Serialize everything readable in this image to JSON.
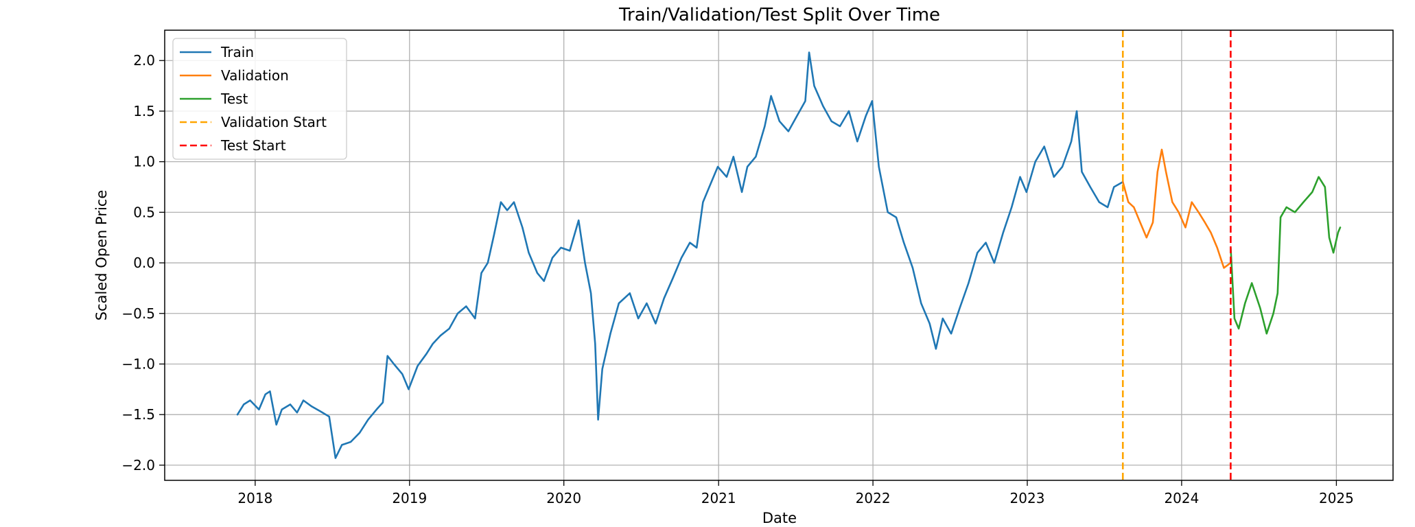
{
  "chart_data": {
    "type": "line",
    "title": "Train/Validation/Test Split Over Time",
    "xlabel": "Date",
    "ylabel": "Scaled Open Price",
    "xlim": [
      "2017-06-01",
      "2025-05-15"
    ],
    "ylim": [
      -2.15,
      2.3
    ],
    "grid": true,
    "legend_position": "top-left",
    "x_ticks": [
      "2018",
      "2019",
      "2020",
      "2021",
      "2022",
      "2023",
      "2024",
      "2025"
    ],
    "y_ticks": [
      "2.0",
      "1.5",
      "1.0",
      "0.5",
      "0.0",
      "−0.5",
      "−1.0",
      "−1.5",
      "−2.0"
    ],
    "x_tick_dates": [
      "2018-01-01",
      "2019-01-01",
      "2020-01-01",
      "2021-01-01",
      "2022-01-01",
      "2023-01-01",
      "2024-01-01",
      "2025-01-01"
    ],
    "y_tick_values": [
      2.0,
      1.5,
      1.0,
      0.5,
      0.0,
      -0.5,
      -1.0,
      -1.5,
      -2.0
    ],
    "series": [
      {
        "name": "Train",
        "color": "#1f77b4",
        "points": [
          [
            "2017-11-20",
            -1.5
          ],
          [
            "2017-12-05",
            -1.4
          ],
          [
            "2017-12-20",
            -1.36
          ],
          [
            "2018-01-10",
            -1.45
          ],
          [
            "2018-01-25",
            -1.3
          ],
          [
            "2018-02-05",
            -1.27
          ],
          [
            "2018-02-20",
            -1.6
          ],
          [
            "2018-03-05",
            -1.45
          ],
          [
            "2018-03-25",
            -1.4
          ],
          [
            "2018-04-10",
            -1.48
          ],
          [
            "2018-04-25",
            -1.36
          ],
          [
            "2018-05-15",
            -1.42
          ],
          [
            "2018-06-05",
            -1.47
          ],
          [
            "2018-06-25",
            -1.52
          ],
          [
            "2018-07-10",
            -1.93
          ],
          [
            "2018-07-25",
            -1.8
          ],
          [
            "2018-08-15",
            -1.77
          ],
          [
            "2018-09-05",
            -1.68
          ],
          [
            "2018-09-25",
            -1.55
          ],
          [
            "2018-10-15",
            -1.45
          ],
          [
            "2018-10-30",
            -1.38
          ],
          [
            "2018-11-10",
            -0.92
          ],
          [
            "2018-11-25",
            -1.0
          ],
          [
            "2018-12-15",
            -1.1
          ],
          [
            "2018-12-30",
            -1.25
          ],
          [
            "2019-01-20",
            -1.02
          ],
          [
            "2019-02-10",
            -0.9
          ],
          [
            "2019-02-25",
            -0.8
          ],
          [
            "2019-03-15",
            -0.72
          ],
          [
            "2019-04-05",
            -0.65
          ],
          [
            "2019-04-25",
            -0.5
          ],
          [
            "2019-05-15",
            -0.43
          ],
          [
            "2019-06-05",
            -0.55
          ],
          [
            "2019-06-20",
            -0.1
          ],
          [
            "2019-07-05",
            0.0
          ],
          [
            "2019-07-20",
            0.28
          ],
          [
            "2019-08-05",
            0.6
          ],
          [
            "2019-08-20",
            0.52
          ],
          [
            "2019-09-05",
            0.6
          ],
          [
            "2019-09-25",
            0.35
          ],
          [
            "2019-10-10",
            0.1
          ],
          [
            "2019-10-30",
            -0.1
          ],
          [
            "2019-11-15",
            -0.18
          ],
          [
            "2019-12-05",
            0.05
          ],
          [
            "2019-12-25",
            0.15
          ],
          [
            "2020-01-15",
            0.12
          ],
          [
            "2020-02-05",
            0.42
          ],
          [
            "2020-02-20",
            0.0
          ],
          [
            "2020-03-05",
            -0.3
          ],
          [
            "2020-03-15",
            -0.8
          ],
          [
            "2020-03-22",
            -1.55
          ],
          [
            "2020-04-01",
            -1.05
          ],
          [
            "2020-04-20",
            -0.7
          ],
          [
            "2020-05-10",
            -0.4
          ],
          [
            "2020-06-05",
            -0.3
          ],
          [
            "2020-06-25",
            -0.55
          ],
          [
            "2020-07-15",
            -0.4
          ],
          [
            "2020-08-05",
            -0.6
          ],
          [
            "2020-08-25",
            -0.35
          ],
          [
            "2020-09-15",
            -0.15
          ],
          [
            "2020-10-05",
            0.05
          ],
          [
            "2020-10-25",
            0.2
          ],
          [
            "2020-11-10",
            0.15
          ],
          [
            "2020-11-25",
            0.6
          ],
          [
            "2020-12-10",
            0.75
          ],
          [
            "2020-12-30",
            0.95
          ],
          [
            "2021-01-20",
            0.85
          ],
          [
            "2021-02-05",
            1.05
          ],
          [
            "2021-02-25",
            0.7
          ],
          [
            "2021-03-10",
            0.95
          ],
          [
            "2021-03-30",
            1.05
          ],
          [
            "2021-04-20",
            1.35
          ],
          [
            "2021-05-05",
            1.65
          ],
          [
            "2021-05-25",
            1.4
          ],
          [
            "2021-06-15",
            1.3
          ],
          [
            "2021-07-05",
            1.45
          ],
          [
            "2021-07-25",
            1.6
          ],
          [
            "2021-08-03",
            2.08
          ],
          [
            "2021-08-15",
            1.75
          ],
          [
            "2021-09-05",
            1.55
          ],
          [
            "2021-09-25",
            1.4
          ],
          [
            "2021-10-15",
            1.35
          ],
          [
            "2021-11-05",
            1.5
          ],
          [
            "2021-11-25",
            1.2
          ],
          [
            "2021-12-15",
            1.45
          ],
          [
            "2021-12-30",
            1.6
          ],
          [
            "2022-01-15",
            0.95
          ],
          [
            "2022-02-05",
            0.5
          ],
          [
            "2022-02-25",
            0.45
          ],
          [
            "2022-03-15",
            0.2
          ],
          [
            "2022-04-05",
            -0.05
          ],
          [
            "2022-04-25",
            -0.4
          ],
          [
            "2022-05-15",
            -0.6
          ],
          [
            "2022-05-30",
            -0.85
          ],
          [
            "2022-06-15",
            -0.55
          ],
          [
            "2022-07-05",
            -0.7
          ],
          [
            "2022-07-25",
            -0.45
          ],
          [
            "2022-08-15",
            -0.2
          ],
          [
            "2022-09-05",
            0.1
          ],
          [
            "2022-09-25",
            0.2
          ],
          [
            "2022-10-15",
            0.0
          ],
          [
            "2022-11-05",
            0.3
          ],
          [
            "2022-11-25",
            0.55
          ],
          [
            "2022-12-15",
            0.85
          ],
          [
            "2022-12-30",
            0.7
          ],
          [
            "2023-01-20",
            1.0
          ],
          [
            "2023-02-10",
            1.15
          ],
          [
            "2023-03-05",
            0.85
          ],
          [
            "2023-03-25",
            0.95
          ],
          [
            "2023-04-15",
            1.2
          ],
          [
            "2023-04-28",
            1.5
          ],
          [
            "2023-05-10",
            0.9
          ],
          [
            "2023-05-30",
            0.75
          ],
          [
            "2023-06-20",
            0.6
          ],
          [
            "2023-07-10",
            0.55
          ],
          [
            "2023-07-25",
            0.75
          ],
          [
            "2023-08-15",
            0.8
          ]
        ]
      },
      {
        "name": "Validation",
        "color": "#ff7f0e",
        "points": [
          [
            "2023-08-15",
            0.8
          ],
          [
            "2023-08-28",
            0.6
          ],
          [
            "2023-09-10",
            0.55
          ],
          [
            "2023-09-25",
            0.4
          ],
          [
            "2023-10-10",
            0.25
          ],
          [
            "2023-10-25",
            0.4
          ],
          [
            "2023-11-05",
            0.9
          ],
          [
            "2023-11-15",
            1.12
          ],
          [
            "2023-11-25",
            0.9
          ],
          [
            "2023-12-10",
            0.6
          ],
          [
            "2023-12-25",
            0.5
          ],
          [
            "2024-01-10",
            0.35
          ],
          [
            "2024-01-25",
            0.6
          ],
          [
            "2024-02-10",
            0.5
          ],
          [
            "2024-02-25",
            0.4
          ],
          [
            "2024-03-10",
            0.3
          ],
          [
            "2024-03-25",
            0.15
          ],
          [
            "2024-04-10",
            -0.05
          ],
          [
            "2024-04-26",
            0.0
          ]
        ]
      },
      {
        "name": "Test",
        "color": "#2ca02c",
        "points": [
          [
            "2024-04-26",
            0.15
          ],
          [
            "2024-05-05",
            -0.55
          ],
          [
            "2024-05-15",
            -0.65
          ],
          [
            "2024-05-30",
            -0.4
          ],
          [
            "2024-06-15",
            -0.2
          ],
          [
            "2024-07-05",
            -0.45
          ],
          [
            "2024-07-20",
            -0.7
          ],
          [
            "2024-08-05",
            -0.5
          ],
          [
            "2024-08-15",
            -0.3
          ],
          [
            "2024-08-22",
            0.45
          ],
          [
            "2024-09-05",
            0.55
          ],
          [
            "2024-09-25",
            0.5
          ],
          [
            "2024-10-15",
            0.6
          ],
          [
            "2024-11-05",
            0.7
          ],
          [
            "2024-11-20",
            0.85
          ],
          [
            "2024-12-05",
            0.75
          ],
          [
            "2024-12-15",
            0.25
          ],
          [
            "2024-12-25",
            0.1
          ],
          [
            "2025-01-05",
            0.3
          ],
          [
            "2025-01-10",
            0.35
          ]
        ]
      }
    ],
    "vlines": [
      {
        "name": "Validation Start",
        "x": "2023-08-15",
        "color": "#ffa500",
        "style": "dashed"
      },
      {
        "name": "Test Start",
        "x": "2024-04-26",
        "color": "#ff0000",
        "style": "dashed"
      }
    ],
    "legend": [
      {
        "label": "Train",
        "color": "#1f77b4",
        "style": "solid"
      },
      {
        "label": "Validation",
        "color": "#ff7f0e",
        "style": "solid"
      },
      {
        "label": "Test",
        "color": "#2ca02c",
        "style": "solid"
      },
      {
        "label": "Validation Start",
        "color": "#ffa500",
        "style": "dashed"
      },
      {
        "label": "Test Start",
        "color": "#ff0000",
        "style": "dashed"
      }
    ]
  }
}
